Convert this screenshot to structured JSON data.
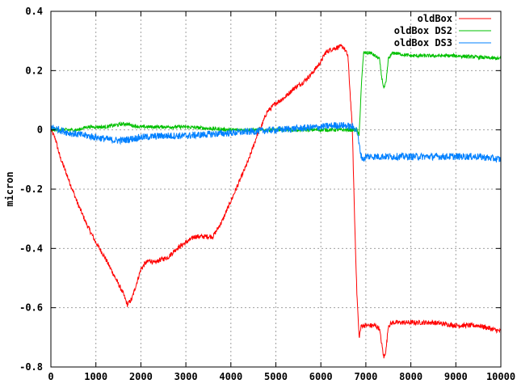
{
  "chart_data": {
    "type": "line",
    "title": "",
    "xlabel": "",
    "ylabel": "micron",
    "xlim": [
      0,
      10000
    ],
    "ylim": [
      -0.8,
      0.4
    ],
    "grid": true,
    "legend_position": "top-right",
    "xticks": [
      0,
      1000,
      2000,
      3000,
      4000,
      5000,
      6000,
      7000,
      8000,
      9000,
      10000
    ],
    "yticks": [
      0.4,
      0.2,
      0,
      -0.2,
      -0.4,
      -0.6,
      -0.8
    ],
    "xtick_labels": [
      "0",
      "1000",
      "2000",
      "3000",
      "4000",
      "5000",
      "6000",
      "7000",
      "8000",
      "9000",
      "10000"
    ],
    "ytick_labels": [
      "0.4",
      "0.2",
      "0",
      "-0.2",
      "-0.4",
      "-0.6",
      "-0.8"
    ],
    "series": [
      {
        "name": "oldBox",
        "color": "#ff0000",
        "x": [
          0,
          100,
          200,
          400,
          600,
          800,
          1000,
          1200,
          1400,
          1600,
          1700,
          1800,
          1900,
          2000,
          2100,
          2200,
          2300,
          2400,
          2600,
          2800,
          3000,
          3200,
          3400,
          3600,
          3800,
          4000,
          4200,
          4400,
          4600,
          4700,
          4800,
          5000,
          5200,
          5400,
          5600,
          5800,
          6000,
          6100,
          6200,
          6400,
          6500,
          6600,
          6700,
          6750,
          6800,
          6850,
          6900,
          7000,
          7200,
          7300,
          7400,
          7450,
          7500,
          7600,
          7800,
          8000,
          8500,
          9000,
          9500,
          10000
        ],
        "y": [
          0.0,
          -0.03,
          -0.09,
          -0.17,
          -0.25,
          -0.32,
          -0.38,
          -0.43,
          -0.49,
          -0.55,
          -0.59,
          -0.57,
          -0.52,
          -0.47,
          -0.45,
          -0.44,
          -0.45,
          -0.44,
          -0.43,
          -0.4,
          -0.38,
          -0.36,
          -0.36,
          -0.36,
          -0.31,
          -0.24,
          -0.17,
          -0.1,
          -0.01,
          0.02,
          0.06,
          0.09,
          0.11,
          0.14,
          0.16,
          0.19,
          0.23,
          0.26,
          0.27,
          0.28,
          0.28,
          0.25,
          0.0,
          -0.3,
          -0.55,
          -0.7,
          -0.66,
          -0.66,
          -0.66,
          -0.67,
          -0.77,
          -0.74,
          -0.66,
          -0.65,
          -0.65,
          -0.65,
          -0.65,
          -0.66,
          -0.66,
          -0.68
        ]
      },
      {
        "name": "oldBox DS2",
        "color": "#00c000",
        "x": [
          0,
          200,
          400,
          600,
          800,
          1000,
          1200,
          1400,
          1600,
          1700,
          1800,
          2000,
          2500,
          3000,
          3500,
          4000,
          4500,
          5000,
          5500,
          6000,
          6500,
          6800,
          6850,
          6900,
          6950,
          7000,
          7100,
          7300,
          7350,
          7400,
          7450,
          7500,
          7600,
          8000,
          8500,
          9000,
          9500,
          10000
        ],
        "y": [
          0.0,
          0.0,
          0.0,
          0.0,
          0.01,
          0.01,
          0.01,
          0.015,
          0.02,
          0.02,
          0.015,
          0.01,
          0.01,
          0.01,
          0.005,
          0.0,
          0.0,
          0.0,
          0.0,
          0.0,
          0.0,
          0.0,
          -0.02,
          0.15,
          0.26,
          0.26,
          0.26,
          0.24,
          0.18,
          0.14,
          0.16,
          0.24,
          0.26,
          0.25,
          0.25,
          0.25,
          0.245,
          0.24
        ]
      },
      {
        "name": "oldBox DS3",
        "color": "#0080ff",
        "x": [
          0,
          200,
          400,
          600,
          800,
          1000,
          1200,
          1400,
          1600,
          1800,
          2000,
          2500,
          3000,
          3500,
          4000,
          4500,
          5000,
          5500,
          6000,
          6300,
          6500,
          6700,
          6800,
          6850,
          6900,
          6950,
          7000,
          7200,
          7500,
          8000,
          8500,
          9000,
          9500,
          10000
        ],
        "y": [
          0.01,
          0.0,
          -0.01,
          -0.015,
          -0.02,
          -0.025,
          -0.03,
          -0.035,
          -0.035,
          -0.03,
          -0.025,
          -0.02,
          -0.02,
          -0.015,
          -0.01,
          -0.005,
          0.0,
          0.005,
          0.01,
          0.015,
          0.015,
          0.01,
          0.0,
          -0.05,
          -0.09,
          -0.1,
          -0.09,
          -0.09,
          -0.09,
          -0.09,
          -0.09,
          -0.09,
          -0.09,
          -0.1
        ]
      }
    ]
  }
}
